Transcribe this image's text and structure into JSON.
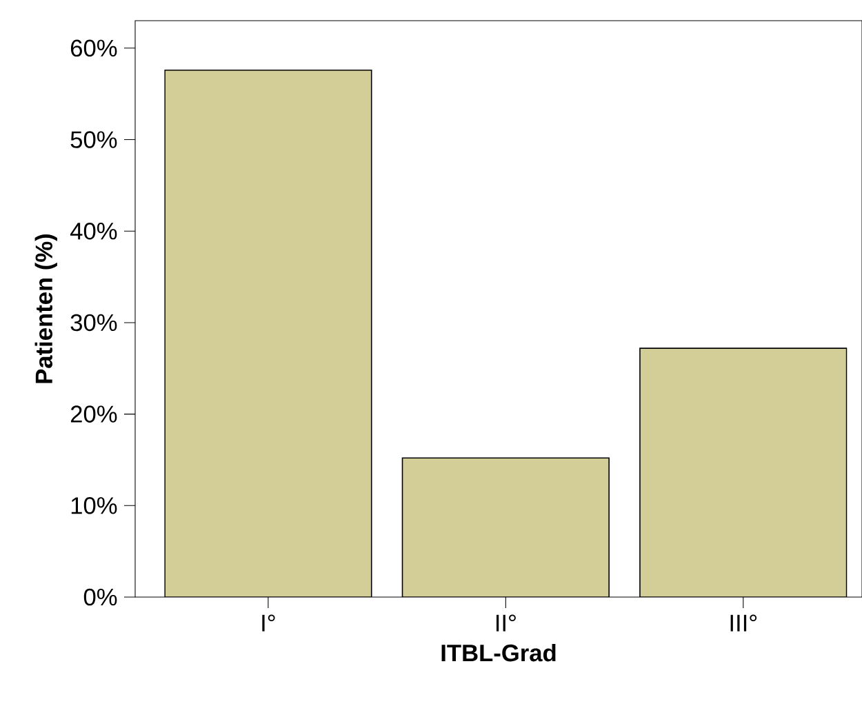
{
  "chart_data": {
    "type": "bar",
    "xlabel": "ITBL-Grad",
    "ylabel": "Patienten (%)",
    "categories": [
      "I°",
      "II°",
      "III°"
    ],
    "values": [
      57.6,
      15.2,
      27.2
    ],
    "color": "#d3ce98",
    "ylim": [
      0,
      63
    ],
    "yticks": [
      {
        "value": 0,
        "label": "0%"
      },
      {
        "value": 10,
        "label": "10%"
      },
      {
        "value": 20,
        "label": "20%"
      },
      {
        "value": 30,
        "label": "30%"
      },
      {
        "value": 40,
        "label": "40%"
      },
      {
        "value": 50,
        "label": "50%"
      },
      {
        "value": 60,
        "label": "60%"
      }
    ],
    "grid": false
  }
}
